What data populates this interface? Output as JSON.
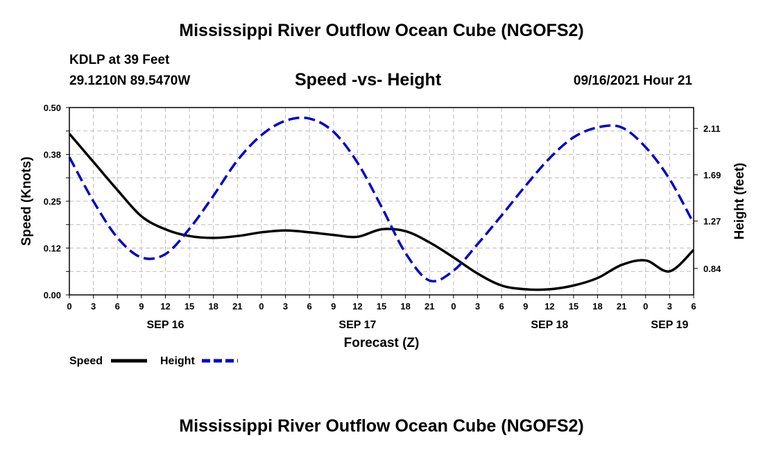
{
  "header": {
    "title": "Mississippi River Outflow Ocean Cube (NGOFS2)",
    "station": "KDLP at 39 Feet",
    "coords": "29.1210N  89.5470W",
    "subtitle": "Speed -vs- Height",
    "datetime": "09/16/2021 Hour 21"
  },
  "footer": {
    "title": "Mississippi River Outflow Ocean Cube (NGOFS2)"
  },
  "colors": {
    "speed": "#000000",
    "height": "#0000cc",
    "grid": "#bbbbbb"
  },
  "chart_data": {
    "type": "line",
    "title": "Speed -vs- Height",
    "xlabel": "Forecast (Z)",
    "ylabel": "Speed (Knots)",
    "y2label": "Height (feet)",
    "x_unit": "hours since Sep 16 00Z",
    "xlim": [
      0,
      78
    ],
    "ylim": [
      0,
      0.5
    ],
    "y2lim": [
      0.6,
      2.3
    ],
    "x_ticks": [
      0,
      3,
      6,
      9,
      12,
      15,
      18,
      21,
      24,
      27,
      30,
      33,
      36,
      39,
      42,
      45,
      48,
      51,
      54,
      57,
      60,
      63,
      66,
      69,
      72,
      75,
      78
    ],
    "x_tick_labels": [
      "0",
      "3",
      "6",
      "9",
      "12",
      "15",
      "18",
      "21",
      "0",
      "3",
      "6",
      "9",
      "12",
      "15",
      "18",
      "21",
      "0",
      "3",
      "6",
      "9",
      "12",
      "15",
      "18",
      "21",
      "0",
      "3",
      "6"
    ],
    "y_ticks": [
      0,
      0.125,
      0.25,
      0.375,
      0.5
    ],
    "y_tick_labels": [
      "0.00",
      "0.12",
      "0.25",
      "0.38",
      "0.50"
    ],
    "y2_ticks": [
      0.84,
      1.27,
      1.69,
      2.11
    ],
    "y2_tick_labels": [
      "0.84",
      "1.27",
      "1.69",
      "2.11"
    ],
    "date_labels": [
      {
        "x": 12,
        "label": "SEP 16"
      },
      {
        "x": 36,
        "label": "SEP 17"
      },
      {
        "x": 60,
        "label": "SEP 18"
      },
      {
        "x": 75,
        "label": "SEP 19"
      }
    ],
    "legend": [
      {
        "name": "Speed",
        "style": "solid"
      },
      {
        "name": "Height",
        "style": "dashed"
      }
    ],
    "series": [
      {
        "name": "Speed",
        "axis": "left",
        "style": "solid",
        "x": [
          0,
          3,
          6,
          9,
          12,
          15,
          18,
          21,
          24,
          27,
          30,
          33,
          36,
          39,
          42,
          45,
          48,
          51,
          54,
          57,
          60,
          63,
          66,
          69,
          72,
          75,
          78
        ],
        "values": [
          0.43,
          0.355,
          0.28,
          0.21,
          0.175,
          0.157,
          0.152,
          0.157,
          0.167,
          0.172,
          0.167,
          0.16,
          0.155,
          0.175,
          0.17,
          0.14,
          0.1,
          0.057,
          0.025,
          0.015,
          0.015,
          0.025,
          0.045,
          0.08,
          0.092,
          0.063,
          0.12
        ]
      },
      {
        "name": "Height",
        "axis": "right",
        "style": "dashed",
        "x": [
          0,
          3,
          6,
          9,
          12,
          15,
          18,
          21,
          24,
          27,
          30,
          33,
          36,
          39,
          42,
          45,
          48,
          51,
          54,
          57,
          60,
          63,
          66,
          69,
          72,
          75,
          78
        ],
        "values": [
          1.85,
          1.45,
          1.12,
          0.94,
          0.97,
          1.2,
          1.5,
          1.82,
          2.05,
          2.18,
          2.2,
          2.08,
          1.8,
          1.4,
          0.98,
          0.73,
          0.82,
          1.06,
          1.32,
          1.59,
          1.84,
          2.03,
          2.12,
          2.12,
          1.94,
          1.65,
          1.25
        ]
      }
    ]
  }
}
